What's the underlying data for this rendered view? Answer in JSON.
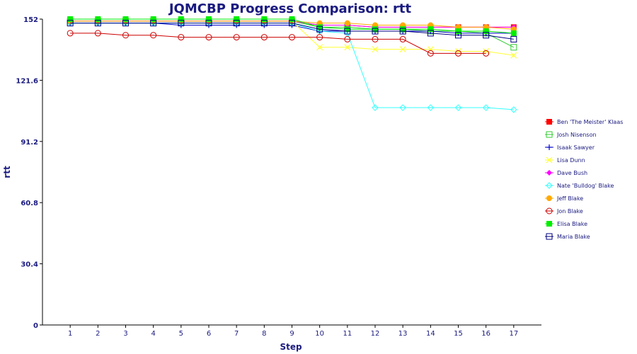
{
  "chart_data": {
    "type": "line",
    "title": "JQMCBP Progress Comparison: rtt",
    "xlabel": "Step",
    "ylabel": "rtt",
    "x": [
      1,
      2,
      3,
      4,
      5,
      6,
      7,
      8,
      9,
      10,
      11,
      12,
      13,
      14,
      15,
      16,
      17
    ],
    "xlim": [
      0,
      18
    ],
    "ylim": [
      0,
      152
    ],
    "yticks": [
      "0",
      "30.4",
      "60.8",
      "91.2",
      "121.6",
      "152"
    ],
    "grid": false,
    "legend_position": "right",
    "series": [
      {
        "name": "Ben 'The Meister' Klaas",
        "color": "#ff0000",
        "marker": "filled-square",
        "values": [
          151,
          151,
          151,
          151,
          151,
          151,
          151,
          151,
          151,
          149,
          149,
          148,
          148,
          148,
          148,
          148,
          148
        ]
      },
      {
        "name": "Josh Nisenson",
        "color": "#33cc33",
        "marker": "open-square",
        "values": [
          151,
          151,
          151,
          151,
          151,
          151,
          151,
          151,
          151,
          148,
          148,
          147,
          147,
          146,
          146,
          145,
          138
        ]
      },
      {
        "name": "Isaak Sawyer",
        "color": "#0000cc",
        "marker": "plus",
        "values": [
          150,
          150,
          150,
          150,
          149,
          149,
          149,
          149,
          149,
          146,
          146,
          146,
          146,
          146,
          145,
          145,
          145
        ]
      },
      {
        "name": "Lisa Dunn",
        "color": "#ffff33",
        "marker": "x",
        "values": [
          151,
          151,
          151,
          151,
          151,
          151,
          151,
          151,
          151,
          138,
          138,
          137,
          137,
          137,
          136,
          136,
          134
        ]
      },
      {
        "name": "Dave Bush",
        "color": "#ff00ff",
        "marker": "filled-diamond",
        "values": [
          151,
          151,
          151,
          151,
          151,
          151,
          151,
          151,
          151,
          149,
          149,
          148,
          148,
          148,
          148,
          148,
          148
        ]
      },
      {
        "name": "Nate 'Bulldog' Blake",
        "color": "#33ffff",
        "marker": "open-diamond",
        "values": [
          150,
          150,
          150,
          150,
          150,
          150,
          150,
          150,
          150,
          146,
          145,
          108,
          108,
          108,
          108,
          108,
          107
        ]
      },
      {
        "name": "Jeff Blake",
        "color": "#ffaa00",
        "marker": "filled-circle",
        "values": [
          151,
          151,
          151,
          151,
          151,
          151,
          151,
          151,
          151,
          150,
          150,
          149,
          149,
          149,
          148,
          148,
          147
        ]
      },
      {
        "name": "Jon Blake",
        "color": "#cc0000",
        "marker": "open-circle",
        "values": [
          145,
          145,
          144,
          144,
          143,
          143,
          143,
          143,
          143,
          143,
          142,
          142,
          142,
          135,
          135,
          135,
          null
        ]
      },
      {
        "name": "Elisa Blake",
        "color": "#00ee00",
        "marker": "filled-square",
        "values": [
          152,
          152,
          152,
          152,
          152,
          152,
          152,
          152,
          152,
          148,
          147,
          147,
          147,
          147,
          146,
          146,
          145
        ]
      },
      {
        "name": "Maria Blake",
        "color": "#000080",
        "marker": "open-square",
        "values": [
          150,
          150,
          150,
          150,
          150,
          150,
          150,
          150,
          150,
          147,
          146,
          146,
          146,
          145,
          144,
          144,
          142
        ]
      }
    ]
  }
}
